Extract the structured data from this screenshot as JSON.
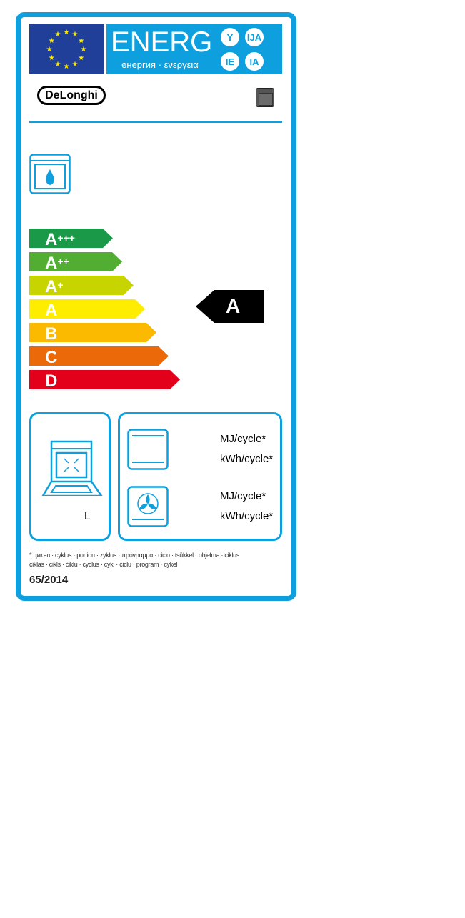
{
  "header": {
    "title": "ENERG",
    "subtitle": "енергия · ενεργεια",
    "suffixes": [
      "Y",
      "IJA",
      "IE",
      "IA"
    ]
  },
  "brand": "DeLonghi",
  "energy_classes": [
    {
      "letter": "A",
      "plus": "+++",
      "color": "#1a9a48"
    },
    {
      "letter": "A",
      "plus": "++",
      "color": "#52ae32"
    },
    {
      "letter": "A",
      "plus": "+",
      "color": "#c8d400"
    },
    {
      "letter": "A",
      "plus": "",
      "color": "#ffed00"
    },
    {
      "letter": "B",
      "plus": "",
      "color": "#fbba00"
    },
    {
      "letter": "C",
      "plus": "",
      "color": "#eb6909"
    },
    {
      "letter": "D",
      "plus": "",
      "color": "#e2001a"
    }
  ],
  "rating": "A",
  "volume_unit": "L",
  "conventional": {
    "unit1": "MJ/cycle*",
    "unit2": "kWh/cycle*"
  },
  "fan_forced": {
    "unit1": "MJ/cycle*",
    "unit2": "kWh/cycle*"
  },
  "footnote_line1": "* цикъл · cyklus · portion · zyklus · πρόγραμμα · ciclo · tsükkel · ohjelma · ciklus",
  "footnote_line2": "ciklas · cikls · ċiklu · cyclus · cykl · ciclu · program · cykel",
  "regulation": "65/2014",
  "colors": {
    "label_blue": "#0ea0de",
    "eu_blue": "#1f3f98"
  }
}
